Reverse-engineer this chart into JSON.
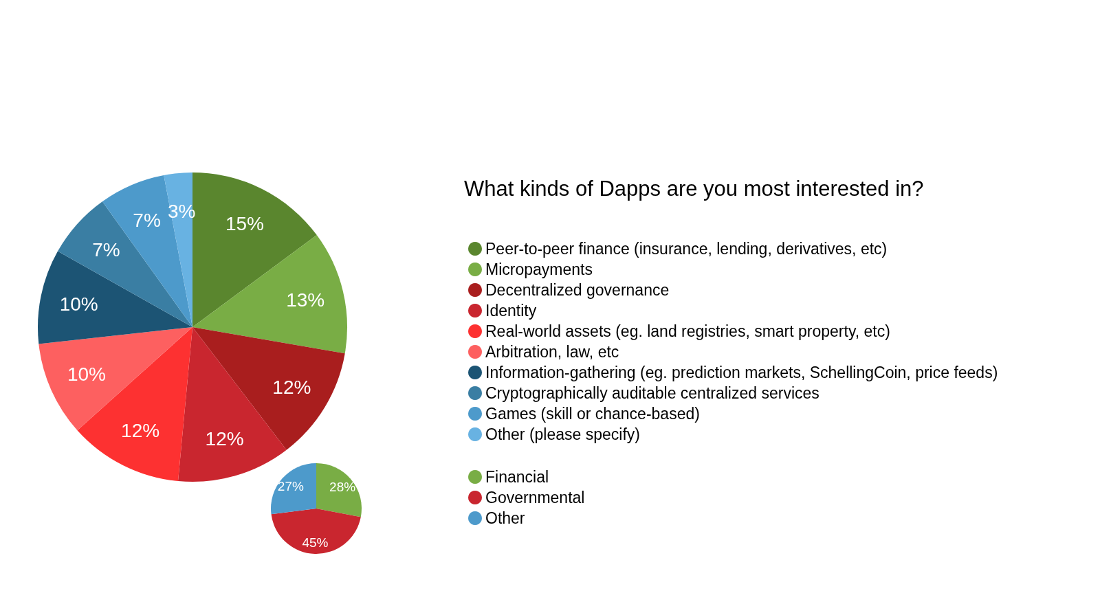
{
  "chart_data": [
    {
      "type": "pie",
      "title": "What kinds of Dapps are you most interested in?",
      "categories": [
        "Peer-to-peer finance (insurance, lending, derivatives, etc)",
        "Micropayments",
        "Decentralized governance",
        "Identity",
        "Real-world assets (eg. land registries, smart property, etc)",
        "Arbitration, law, etc",
        "Information-gathering (eg. prediction markets, SchellingCoin, price feeds)",
        "Cryptographically auditable centralized services",
        "Games (skill or chance-based)",
        "Other (please specify)"
      ],
      "values": [
        15,
        13,
        12,
        12,
        12,
        10,
        10,
        7,
        7,
        3
      ],
      "colors": [
        "#5a862e",
        "#79ad45",
        "#a91e1e",
        "#c9262f",
        "#fd3131",
        "#fd6060",
        "#1c5474",
        "#3a7ea3",
        "#4d9acb",
        "#68b2e2"
      ],
      "value_labels": [
        "15%",
        "13%",
        "12%",
        "12%",
        "12%",
        "10%",
        "10%",
        "7%",
        "7%",
        "3%"
      ],
      "legend": "right"
    },
    {
      "type": "pie",
      "categories": [
        "Financial",
        "Governmental",
        "Other"
      ],
      "values": [
        28,
        45,
        27
      ],
      "colors": [
        "#79ad45",
        "#c9262f",
        "#4d9acb"
      ],
      "value_labels": [
        "28%",
        "45%",
        "27%"
      ],
      "legend": "right"
    }
  ]
}
